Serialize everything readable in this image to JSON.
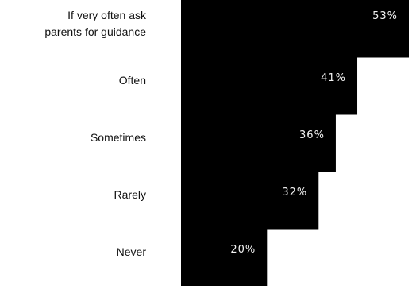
{
  "chart_data": {
    "type": "bar",
    "orientation": "horizontal",
    "categories": [
      [
        "If very often ask",
        "parents for guidance"
      ],
      [
        "Often"
      ],
      [
        "Sometimes"
      ],
      [
        "Rarely"
      ],
      [
        "Never"
      ]
    ],
    "values": [
      53,
      41,
      36,
      32,
      20
    ],
    "value_labels": [
      "53%",
      "41%",
      "36%",
      "32%",
      "20%"
    ],
    "value_unit": "%",
    "title": "",
    "xlabel": "",
    "ylabel": "",
    "xlim": [
      0,
      53
    ],
    "grid": false,
    "legend": "none"
  },
  "colors": {
    "bar": "#000000",
    "background": "#ffffff",
    "category_text": "#111111",
    "value_text": "#f2f2f2"
  }
}
